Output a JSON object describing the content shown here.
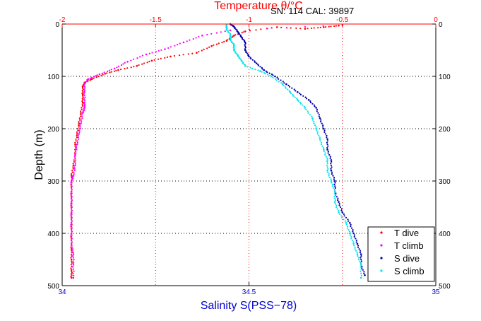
{
  "chart_data": {
    "type": "scatter",
    "title": "Temperature θ/°C",
    "annotation": "SN: 114  CAL: 39897",
    "xlabel": "Salinity S(PSS−78)",
    "ylabel": "Depth (m)",
    "x_bottom": {
      "label": "Salinity S(PSS−78)",
      "range": [
        34,
        35
      ],
      "ticks": [
        34,
        34.5,
        35
      ],
      "tick_labels": [
        "34",
        "34.5",
        "35"
      ],
      "color": "#0000cc"
    },
    "x_top": {
      "label": "Temperature θ/°C",
      "range": [
        -2,
        0
      ],
      "ticks": [
        -2,
        -1.5,
        -1,
        -0.5,
        0
      ],
      "tick_labels": [
        "-2",
        "-1.5",
        "-1",
        "-0.5",
        "0"
      ],
      "color": "#ff0000"
    },
    "y": {
      "label": "Depth (m)",
      "range": [
        0,
        500
      ],
      "reversed": true,
      "ticks": [
        0,
        100,
        200,
        300,
        400,
        500
      ],
      "tick_labels": [
        "0",
        "100",
        "200",
        "300",
        "400",
        "500"
      ]
    },
    "grid": true,
    "grid_style": "dotted",
    "legend_position": "bottom-right",
    "series": [
      {
        "name": "T dive",
        "axis": "top",
        "color": "#ff0000",
        "points": [
          [
            -0.52,
            3
          ],
          [
            -0.6,
            6
          ],
          [
            -0.7,
            9
          ],
          [
            -0.85,
            6
          ],
          [
            -1.02,
            14
          ],
          [
            -1.08,
            22
          ],
          [
            -1.12,
            32
          ],
          [
            -1.2,
            42
          ],
          [
            -1.28,
            55
          ],
          [
            -1.42,
            62
          ],
          [
            -1.52,
            70
          ],
          [
            -1.6,
            80
          ],
          [
            -1.7,
            88
          ],
          [
            -1.77,
            95
          ],
          [
            -1.84,
            105
          ],
          [
            -1.88,
            112
          ],
          [
            -1.89,
            120
          ],
          [
            -1.89,
            135
          ],
          [
            -1.89,
            150
          ],
          [
            -1.9,
            170
          ],
          [
            -1.91,
            190
          ],
          [
            -1.92,
            210
          ],
          [
            -1.93,
            230
          ],
          [
            -1.93,
            250
          ],
          [
            -1.94,
            270
          ],
          [
            -1.95,
            290
          ],
          [
            -1.95,
            310
          ],
          [
            -1.95,
            330
          ],
          [
            -1.95,
            350
          ],
          [
            -1.95,
            370
          ],
          [
            -1.95,
            390
          ],
          [
            -1.95,
            410
          ],
          [
            -1.95,
            430
          ],
          [
            -1.95,
            450
          ],
          [
            -1.95,
            470
          ],
          [
            -1.95,
            485
          ]
        ]
      },
      {
        "name": "T climb",
        "axis": "top",
        "color": "#ff00ff",
        "points": [
          [
            -0.5,
            2
          ],
          [
            -1.1,
            12
          ],
          [
            -1.25,
            22
          ],
          [
            -1.35,
            35
          ],
          [
            -1.45,
            48
          ],
          [
            -1.55,
            58
          ],
          [
            -1.65,
            72
          ],
          [
            -1.72,
            85
          ],
          [
            -1.8,
            96
          ],
          [
            -1.86,
            105
          ],
          [
            -1.88,
            114
          ],
          [
            -1.88,
            130
          ],
          [
            -1.88,
            150
          ],
          [
            -1.88,
            160
          ],
          [
            -1.89,
            170
          ],
          [
            -1.9,
            190
          ],
          [
            -1.91,
            210
          ],
          [
            -1.92,
            230
          ],
          [
            -1.93,
            250
          ],
          [
            -1.93,
            270
          ],
          [
            -1.94,
            290
          ],
          [
            -1.95,
            300
          ],
          [
            -1.95,
            320
          ],
          [
            -1.95,
            340
          ],
          [
            -1.95,
            360
          ],
          [
            -1.95,
            380
          ],
          [
            -1.95,
            400
          ],
          [
            -1.95,
            420
          ],
          [
            -1.94,
            440
          ],
          [
            -1.94,
            460
          ],
          [
            -1.94,
            485
          ]
        ]
      },
      {
        "name": "S dive",
        "axis": "bottom",
        "color": "#0000aa",
        "points": [
          [
            34.45,
            0
          ],
          [
            34.46,
            5
          ],
          [
            34.47,
            15
          ],
          [
            34.48,
            25
          ],
          [
            34.49,
            35
          ],
          [
            34.49,
            50
          ],
          [
            34.5,
            62
          ],
          [
            34.52,
            75
          ],
          [
            34.54,
            88
          ],
          [
            34.57,
            100
          ],
          [
            34.6,
            115
          ],
          [
            34.63,
            130
          ],
          [
            34.66,
            145
          ],
          [
            34.68,
            160
          ],
          [
            34.69,
            180
          ],
          [
            34.7,
            200
          ],
          [
            34.71,
            220
          ],
          [
            34.71,
            240
          ],
          [
            34.72,
            260
          ],
          [
            34.72,
            280
          ],
          [
            34.73,
            300
          ],
          [
            34.73,
            320
          ],
          [
            34.74,
            340
          ],
          [
            34.75,
            360
          ],
          [
            34.77,
            380
          ],
          [
            34.78,
            400
          ],
          [
            34.79,
            420
          ],
          [
            34.8,
            440
          ],
          [
            34.8,
            460
          ],
          [
            34.81,
            480
          ]
        ]
      },
      {
        "name": "S climb",
        "axis": "bottom",
        "color": "#00e5ee",
        "points": [
          [
            34.44,
            2
          ],
          [
            34.44,
            10
          ],
          [
            34.45,
            20
          ],
          [
            34.45,
            30
          ],
          [
            34.46,
            40
          ],
          [
            34.46,
            50
          ],
          [
            34.47,
            60
          ],
          [
            34.48,
            70
          ],
          [
            34.49,
            80
          ],
          [
            34.53,
            90
          ],
          [
            34.56,
            100
          ],
          [
            34.59,
            115
          ],
          [
            34.61,
            130
          ],
          [
            34.63,
            145
          ],
          [
            34.65,
            160
          ],
          [
            34.67,
            180
          ],
          [
            34.68,
            200
          ],
          [
            34.69,
            220
          ],
          [
            34.7,
            240
          ],
          [
            34.71,
            260
          ],
          [
            34.71,
            280
          ],
          [
            34.72,
            300
          ],
          [
            34.73,
            320
          ],
          [
            34.73,
            340
          ],
          [
            34.74,
            360
          ],
          [
            34.76,
            380
          ],
          [
            34.77,
            400
          ],
          [
            34.78,
            420
          ],
          [
            34.79,
            440
          ],
          [
            34.8,
            460
          ],
          [
            34.8,
            485
          ]
        ]
      }
    ]
  }
}
